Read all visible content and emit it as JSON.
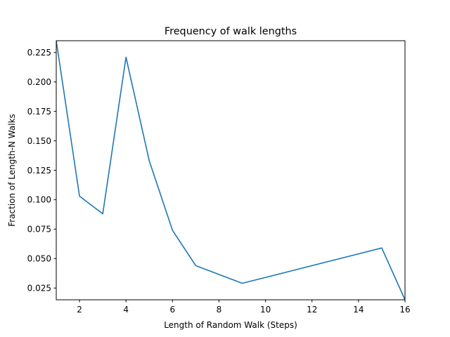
{
  "chart_data": {
    "type": "line",
    "title": "Frequency of walk lengths",
    "xlabel": "Length of Random Walk (Steps)",
    "ylabel": "Fraction of Length-N Walks",
    "xlim": [
      1,
      16
    ],
    "ylim": [
      0.015,
      0.235
    ],
    "xticks": [
      2,
      4,
      6,
      8,
      10,
      12,
      14,
      16
    ],
    "xtick_labels": [
      "2",
      "4",
      "6",
      "8",
      "10",
      "12",
      "14",
      "16"
    ],
    "yticks": [
      0.025,
      0.05,
      0.075,
      0.1,
      0.125,
      0.15,
      0.175,
      0.2,
      0.225
    ],
    "ytick_labels": [
      "0.025",
      "0.050",
      "0.075",
      "0.100",
      "0.125",
      "0.150",
      "0.175",
      "0.200",
      "0.225"
    ],
    "grid": false,
    "series": [
      {
        "color": "#1f77b4",
        "x": [
          1,
          2,
          3,
          4,
          5,
          6,
          7,
          9,
          15,
          16
        ],
        "y": [
          0.235,
          0.103,
          0.088,
          0.221,
          0.133,
          0.074,
          0.044,
          0.029,
          0.059,
          0.015
        ]
      }
    ]
  }
}
